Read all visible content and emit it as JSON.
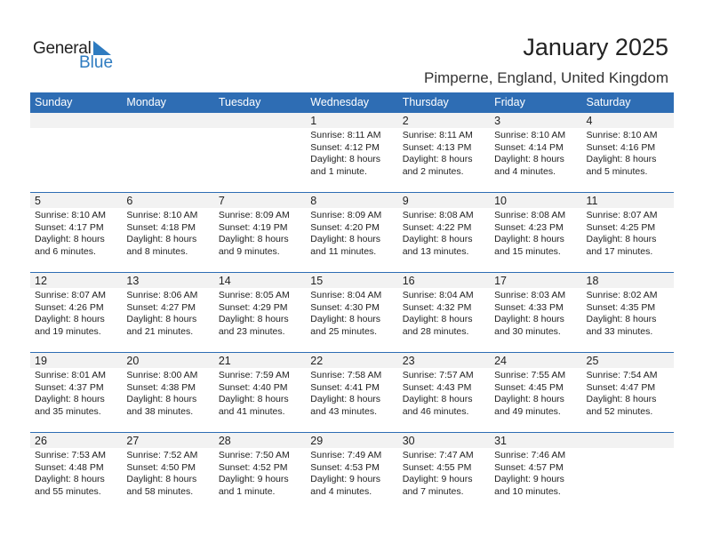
{
  "logo": {
    "general": "General",
    "blue": "Blue",
    "brand_color": "#2E7BC0"
  },
  "title": "January 2025",
  "location": "Pimperne, England, United Kingdom",
  "header_color": "#2E6DB4",
  "weekdays": [
    "Sunday",
    "Monday",
    "Tuesday",
    "Wednesday",
    "Thursday",
    "Friday",
    "Saturday"
  ],
  "weeks": [
    [
      null,
      null,
      null,
      {
        "day": "1",
        "sunrise": "Sunrise: 8:11 AM",
        "sunset": "Sunset: 4:12 PM",
        "daylight": "Daylight: 8 hours",
        "daylight2": "and 1 minute."
      },
      {
        "day": "2",
        "sunrise": "Sunrise: 8:11 AM",
        "sunset": "Sunset: 4:13 PM",
        "daylight": "Daylight: 8 hours",
        "daylight2": "and 2 minutes."
      },
      {
        "day": "3",
        "sunrise": "Sunrise: 8:10 AM",
        "sunset": "Sunset: 4:14 PM",
        "daylight": "Daylight: 8 hours",
        "daylight2": "and 4 minutes."
      },
      {
        "day": "4",
        "sunrise": "Sunrise: 8:10 AM",
        "sunset": "Sunset: 4:16 PM",
        "daylight": "Daylight: 8 hours",
        "daylight2": "and 5 minutes."
      }
    ],
    [
      {
        "day": "5",
        "sunrise": "Sunrise: 8:10 AM",
        "sunset": "Sunset: 4:17 PM",
        "daylight": "Daylight: 8 hours",
        "daylight2": "and 6 minutes."
      },
      {
        "day": "6",
        "sunrise": "Sunrise: 8:10 AM",
        "sunset": "Sunset: 4:18 PM",
        "daylight": "Daylight: 8 hours",
        "daylight2": "and 8 minutes."
      },
      {
        "day": "7",
        "sunrise": "Sunrise: 8:09 AM",
        "sunset": "Sunset: 4:19 PM",
        "daylight": "Daylight: 8 hours",
        "daylight2": "and 9 minutes."
      },
      {
        "day": "8",
        "sunrise": "Sunrise: 8:09 AM",
        "sunset": "Sunset: 4:20 PM",
        "daylight": "Daylight: 8 hours",
        "daylight2": "and 11 minutes."
      },
      {
        "day": "9",
        "sunrise": "Sunrise: 8:08 AM",
        "sunset": "Sunset: 4:22 PM",
        "daylight": "Daylight: 8 hours",
        "daylight2": "and 13 minutes."
      },
      {
        "day": "10",
        "sunrise": "Sunrise: 8:08 AM",
        "sunset": "Sunset: 4:23 PM",
        "daylight": "Daylight: 8 hours",
        "daylight2": "and 15 minutes."
      },
      {
        "day": "11",
        "sunrise": "Sunrise: 8:07 AM",
        "sunset": "Sunset: 4:25 PM",
        "daylight": "Daylight: 8 hours",
        "daylight2": "and 17 minutes."
      }
    ],
    [
      {
        "day": "12",
        "sunrise": "Sunrise: 8:07 AM",
        "sunset": "Sunset: 4:26 PM",
        "daylight": "Daylight: 8 hours",
        "daylight2": "and 19 minutes."
      },
      {
        "day": "13",
        "sunrise": "Sunrise: 8:06 AM",
        "sunset": "Sunset: 4:27 PM",
        "daylight": "Daylight: 8 hours",
        "daylight2": "and 21 minutes."
      },
      {
        "day": "14",
        "sunrise": "Sunrise: 8:05 AM",
        "sunset": "Sunset: 4:29 PM",
        "daylight": "Daylight: 8 hours",
        "daylight2": "and 23 minutes."
      },
      {
        "day": "15",
        "sunrise": "Sunrise: 8:04 AM",
        "sunset": "Sunset: 4:30 PM",
        "daylight": "Daylight: 8 hours",
        "daylight2": "and 25 minutes."
      },
      {
        "day": "16",
        "sunrise": "Sunrise: 8:04 AM",
        "sunset": "Sunset: 4:32 PM",
        "daylight": "Daylight: 8 hours",
        "daylight2": "and 28 minutes."
      },
      {
        "day": "17",
        "sunrise": "Sunrise: 8:03 AM",
        "sunset": "Sunset: 4:33 PM",
        "daylight": "Daylight: 8 hours",
        "daylight2": "and 30 minutes."
      },
      {
        "day": "18",
        "sunrise": "Sunrise: 8:02 AM",
        "sunset": "Sunset: 4:35 PM",
        "daylight": "Daylight: 8 hours",
        "daylight2": "and 33 minutes."
      }
    ],
    [
      {
        "day": "19",
        "sunrise": "Sunrise: 8:01 AM",
        "sunset": "Sunset: 4:37 PM",
        "daylight": "Daylight: 8 hours",
        "daylight2": "and 35 minutes."
      },
      {
        "day": "20",
        "sunrise": "Sunrise: 8:00 AM",
        "sunset": "Sunset: 4:38 PM",
        "daylight": "Daylight: 8 hours",
        "daylight2": "and 38 minutes."
      },
      {
        "day": "21",
        "sunrise": "Sunrise: 7:59 AM",
        "sunset": "Sunset: 4:40 PM",
        "daylight": "Daylight: 8 hours",
        "daylight2": "and 41 minutes."
      },
      {
        "day": "22",
        "sunrise": "Sunrise: 7:58 AM",
        "sunset": "Sunset: 4:41 PM",
        "daylight": "Daylight: 8 hours",
        "daylight2": "and 43 minutes."
      },
      {
        "day": "23",
        "sunrise": "Sunrise: 7:57 AM",
        "sunset": "Sunset: 4:43 PM",
        "daylight": "Daylight: 8 hours",
        "daylight2": "and 46 minutes."
      },
      {
        "day": "24",
        "sunrise": "Sunrise: 7:55 AM",
        "sunset": "Sunset: 4:45 PM",
        "daylight": "Daylight: 8 hours",
        "daylight2": "and 49 minutes."
      },
      {
        "day": "25",
        "sunrise": "Sunrise: 7:54 AM",
        "sunset": "Sunset: 4:47 PM",
        "daylight": "Daylight: 8 hours",
        "daylight2": "and 52 minutes."
      }
    ],
    [
      {
        "day": "26",
        "sunrise": "Sunrise: 7:53 AM",
        "sunset": "Sunset: 4:48 PM",
        "daylight": "Daylight: 8 hours",
        "daylight2": "and 55 minutes."
      },
      {
        "day": "27",
        "sunrise": "Sunrise: 7:52 AM",
        "sunset": "Sunset: 4:50 PM",
        "daylight": "Daylight: 8 hours",
        "daylight2": "and 58 minutes."
      },
      {
        "day": "28",
        "sunrise": "Sunrise: 7:50 AM",
        "sunset": "Sunset: 4:52 PM",
        "daylight": "Daylight: 9 hours",
        "daylight2": "and 1 minute."
      },
      {
        "day": "29",
        "sunrise": "Sunrise: 7:49 AM",
        "sunset": "Sunset: 4:53 PM",
        "daylight": "Daylight: 9 hours",
        "daylight2": "and 4 minutes."
      },
      {
        "day": "30",
        "sunrise": "Sunrise: 7:47 AM",
        "sunset": "Sunset: 4:55 PM",
        "daylight": "Daylight: 9 hours",
        "daylight2": "and 7 minutes."
      },
      {
        "day": "31",
        "sunrise": "Sunrise: 7:46 AM",
        "sunset": "Sunset: 4:57 PM",
        "daylight": "Daylight: 9 hours",
        "daylight2": "and 10 minutes."
      },
      null
    ]
  ]
}
